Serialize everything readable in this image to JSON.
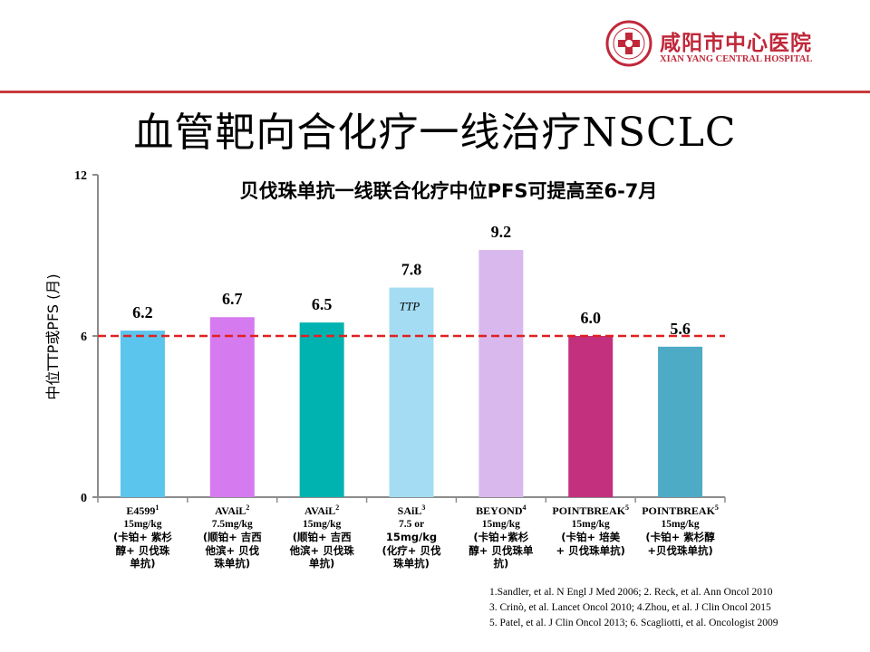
{
  "header": {
    "logo_name_cn": "咸阳市中心医院",
    "logo_name_en": "XIAN YANG CENTRAL HOSPITAL",
    "brand_color": "#c0283a"
  },
  "slide": {
    "title": "血管靶向合化疗一线治疗NSCLC"
  },
  "chart_data": {
    "type": "bar",
    "title": "贝伐珠单抗一线联合化疗中位PFS可提高至6-7月",
    "ylabel": "中位TTP或PFS (月)",
    "ylim": [
      0,
      12
    ],
    "yticks": [
      "0",
      "6",
      "12"
    ],
    "reference_line": {
      "value": 6,
      "style": "dashed",
      "color": "#e02020"
    },
    "categories": [
      {
        "name": "E4599",
        "sup": "1",
        "dose": "15mg/kg",
        "regimen": [
          "(卡铂+ 紫杉",
          "醇+ 贝伐珠",
          "单抗)"
        ]
      },
      {
        "name": "AVAiL",
        "sup": "2",
        "dose": "7.5mg/kg",
        "regimen": [
          "(顺铂+ 吉西",
          "他滨+ 贝伐",
          "珠单抗)"
        ]
      },
      {
        "name": "AVAiL",
        "sup": "2",
        "dose": "15mg/kg",
        "regimen": [
          "(顺铂+ 吉西",
          "他滨+ 贝伐珠",
          "单抗)"
        ]
      },
      {
        "name": "SAiL",
        "sup": "3",
        "dose": "7.5 or",
        "regimen": [
          "15mg/kg",
          "(化疗+ 贝伐",
          "珠单抗)"
        ]
      },
      {
        "name": "BEYOND",
        "sup": "4",
        "dose": "15mg/kg",
        "regimen": [
          "(卡铂+紫杉",
          "醇+ 贝伐珠单",
          "抗)"
        ]
      },
      {
        "name": "POINTBREAK",
        "sup": "5",
        "dose": "15mg/kg",
        "regimen": [
          "(卡铂+ 培美",
          "+ 贝伐珠单抗)"
        ]
      },
      {
        "name": "POINTBREAK",
        "sup": "5",
        "dose": "15mg/kg",
        "regimen": [
          "(卡铂+ 紫杉醇",
          "+贝伐珠单抗)"
        ]
      }
    ],
    "values": [
      6.2,
      6.7,
      6.5,
      7.8,
      9.2,
      6.0,
      5.6
    ],
    "value_labels": [
      "6.2",
      "6.7",
      "6.5",
      "7.8",
      "9.2",
      "6.0",
      "5.6"
    ],
    "colors": [
      "#5bc5ee",
      "#d67bef",
      "#00b3b0",
      "#a4dcf3",
      "#d9b8ee",
      "#c3307e",
      "#4eabc5"
    ],
    "annotations": [
      {
        "category_index": 3,
        "text": "TTP"
      }
    ],
    "grid": false,
    "legend": "none"
  },
  "references": [
    "1.Sandler, et al. N Engl J Med 2006;  2. Reck, et al. Ann Oncol 2010",
    "3. Crinò, et al. Lancet Oncol 2010;  4.Zhou,  et al. J Clin Oncol 2015",
    "5. Patel, et al. J Clin Oncol 2013;  6. Scagliotti, et al. Oncologist 2009"
  ]
}
